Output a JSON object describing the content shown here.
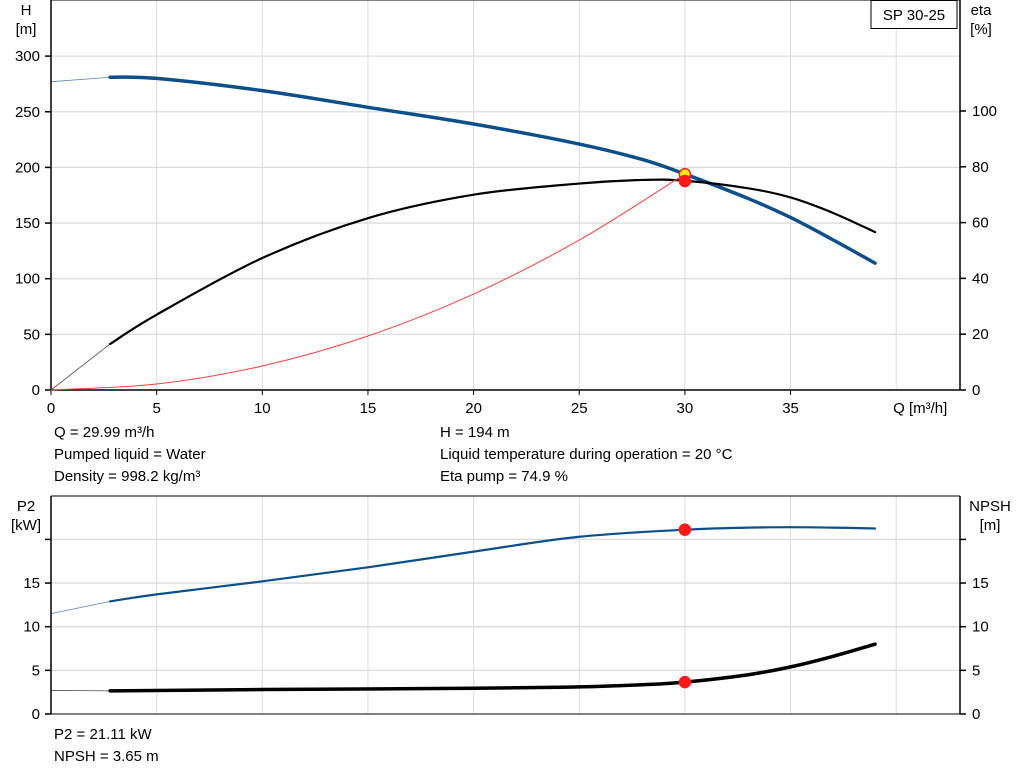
{
  "chart_data": [
    {
      "type": "line",
      "title": "SP 30-25",
      "xlabel": "Q [m³/h]",
      "ylabel": "H\n[m]",
      "ylabel_right": "eta\n[%]",
      "xlim": [
        0,
        43
      ],
      "ylim": [
        0,
        350
      ],
      "ylim_right": [
        0,
        140
      ],
      "x_ticks": [
        0,
        5,
        10,
        15,
        20,
        25,
        30,
        35
      ],
      "y_ticks": [
        0,
        50,
        100,
        150,
        200,
        250,
        300
      ],
      "y_ticks_right": [
        0,
        20,
        40,
        60,
        80,
        100
      ],
      "grid": true,
      "series": [
        {
          "name": "H",
          "axis": "left",
          "color": "#0d4f8b",
          "width": 3.5,
          "valid_from_q": 2.8,
          "x": [
            0,
            2.8,
            5,
            10,
            15,
            20,
            25,
            28,
            30,
            33,
            35,
            37,
            39
          ],
          "y": [
            277,
            281,
            280,
            269,
            254,
            239,
            221,
            207,
            194,
            172,
            155,
            135,
            114
          ]
        },
        {
          "name": "eta",
          "axis": "right",
          "color": "#000000",
          "width": 2.2,
          "valid_from_q": 2.8,
          "x": [
            0,
            2.8,
            5,
            10,
            15,
            20,
            25,
            28,
            30,
            33,
            35,
            37,
            39
          ],
          "y": [
            0,
            16.5,
            27,
            47.3,
            61.6,
            70,
            74,
            75.3,
            75,
            72.3,
            69,
            63.5,
            56.6
          ]
        },
        {
          "name": "system curve",
          "axis": "left",
          "color": "#ff4040",
          "width": 1,
          "valid_from_q": 0,
          "x": [
            0,
            5,
            10,
            15,
            20,
            25,
            30
          ],
          "y": [
            0,
            5.4,
            21.6,
            48.5,
            86.2,
            134.7,
            194
          ]
        }
      ],
      "points": [
        {
          "name": "duty point H",
          "x": 30,
          "y": 194,
          "axis": "left",
          "fill": "#ffee00",
          "stroke": "#ff2020"
        },
        {
          "name": "duty point eta",
          "x": 30,
          "y": 74.9,
          "axis": "right",
          "fill": "#ff1a1a",
          "stroke": "#ff1a1a"
        }
      ]
    },
    {
      "type": "line",
      "ylabel": "P2\n[kW]",
      "ylabel_right": "NPSH\n[m]",
      "xlim": [
        0,
        43
      ],
      "ylim": [
        0,
        25
      ],
      "y_ticks": [
        0,
        5,
        10,
        15,
        20
      ],
      "y_tick_labels": [
        "0",
        "5",
        "10",
        "15",
        ""
      ],
      "grid": true,
      "series": [
        {
          "name": "P2",
          "axis": "left",
          "color": "#0d4f8b",
          "width": 2.2,
          "valid_from_q": 2.8,
          "x": [
            0,
            2.8,
            5,
            10,
            15,
            20,
            25,
            30,
            33,
            35,
            37,
            39
          ],
          "y": [
            11.5,
            12.9,
            13.7,
            15.2,
            16.8,
            18.6,
            20.3,
            21.11,
            21.35,
            21.4,
            21.35,
            21.25
          ]
        },
        {
          "name": "NPSH",
          "axis": "right",
          "color": "#000000",
          "width": 3.5,
          "valid_from_q": 2.8,
          "x": [
            0,
            2.8,
            10,
            20,
            25,
            28,
            30,
            33,
            35,
            37,
            39
          ],
          "y": [
            2.7,
            2.65,
            2.8,
            2.95,
            3.1,
            3.35,
            3.65,
            4.5,
            5.4,
            6.6,
            8.0
          ]
        }
      ],
      "points": [
        {
          "name": "duty point P2",
          "x": 30,
          "y": 21.11,
          "fill": "#ff1a1a",
          "stroke": "#ff1a1a"
        },
        {
          "name": "duty point NPSH",
          "x": 30,
          "y": 3.65,
          "fill": "#ff1a1a",
          "stroke": "#ff1a1a"
        }
      ]
    }
  ],
  "info_top": {
    "q": "Q = 29.99 m³/h",
    "liquid": "Pumped liquid = Water",
    "density": "Density = 998.2 kg/m³",
    "h": "H = 194 m",
    "temperature": "Liquid temperature during operation = 20 °C",
    "eta_pump": "Eta pump = 74.9 %"
  },
  "info_bottom": {
    "p2": "P2 = 21.11 kW",
    "npsh": "NPSH = 3.65 m"
  }
}
